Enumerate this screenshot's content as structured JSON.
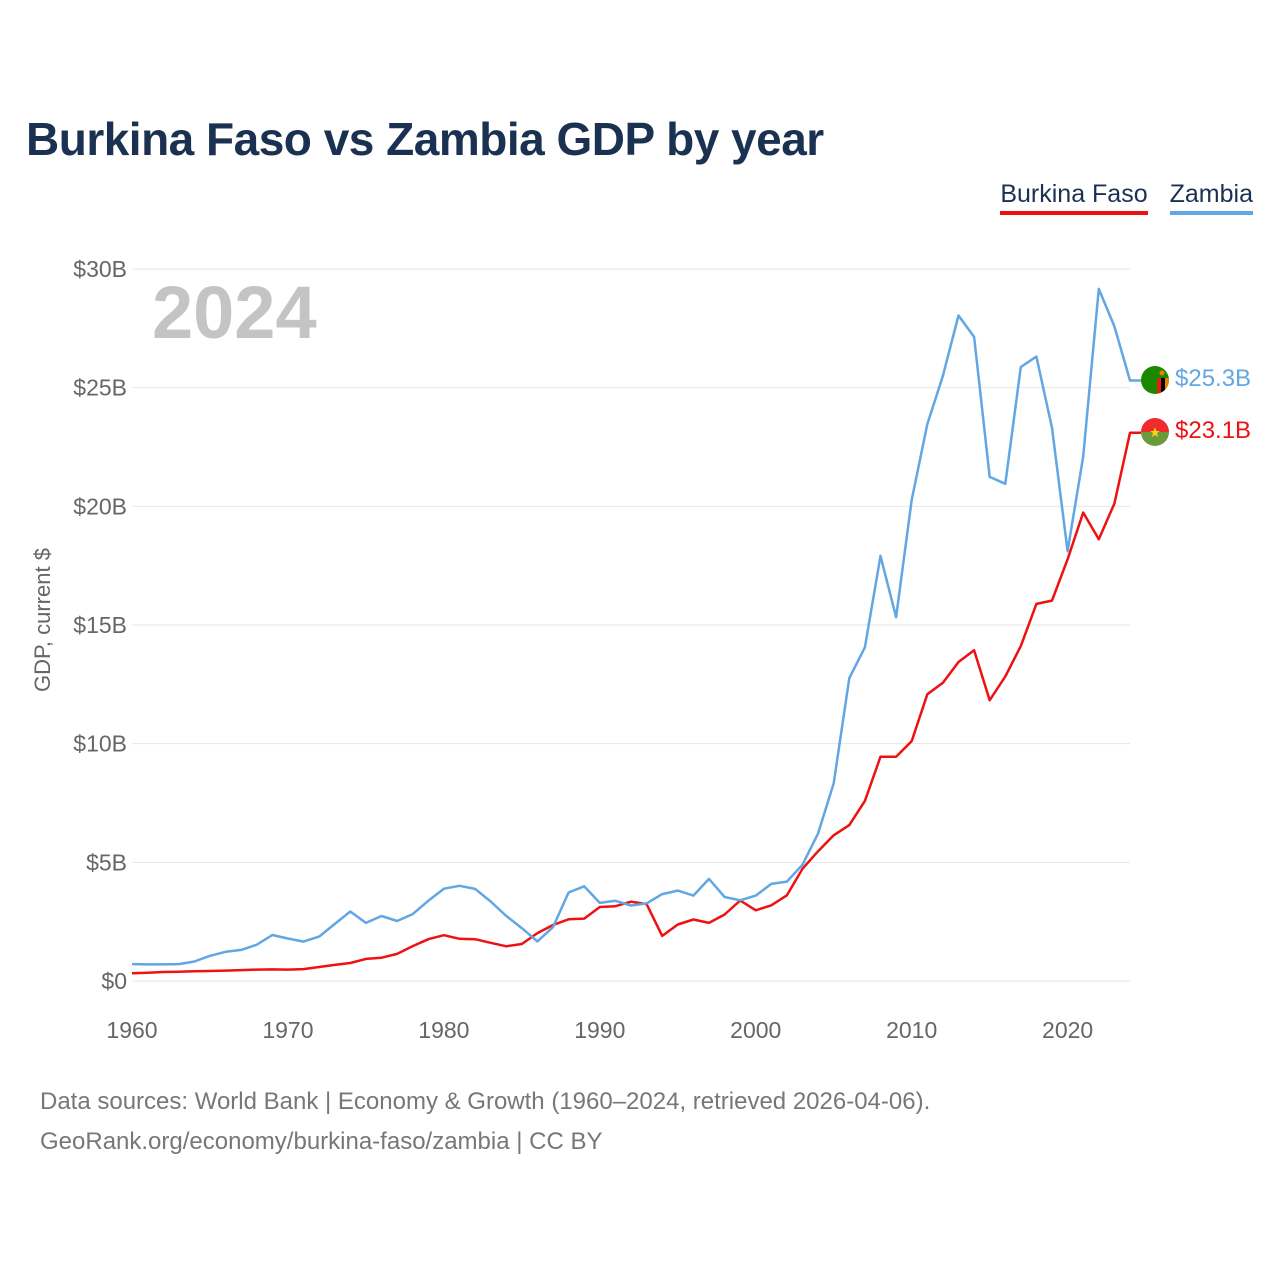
{
  "title": "Burkina Faso vs Zambia GDP by year",
  "year_watermark": "2024",
  "legend": {
    "burkina_faso": "Burkina Faso",
    "zambia": "Zambia"
  },
  "end_labels": {
    "zambia": "$25.3B",
    "burkina_faso": "$23.1B"
  },
  "source_line1": "Data sources: World Bank | Economy & Growth (1960–2024, retrieved 2026-04-06).",
  "source_line2": "GeoRank.org/economy/burkina-faso/zambia | CC BY",
  "colors": {
    "burkina_faso": "#ee1111",
    "zambia": "#62a6e3",
    "grid": "#e6e6e6",
    "axis_text": "#666666",
    "watermark": "#c4c4c4",
    "title": "#1b3152"
  },
  "chart_data": {
    "type": "line",
    "title": "Burkina Faso vs Zambia GDP by year",
    "xlabel": "",
    "ylabel": "GDP, current $",
    "xlim": [
      1960,
      2024
    ],
    "ylim": [
      0,
      30
    ],
    "y_unit": "billion USD",
    "x_ticks": [
      1960,
      1970,
      1980,
      1990,
      2000,
      2010,
      2020
    ],
    "y_ticks": [
      0,
      5,
      10,
      15,
      20,
      25,
      30
    ],
    "y_tick_labels": [
      "$0",
      "$5B",
      "$10B",
      "$15B",
      "$20B",
      "$25B",
      "$30B"
    ],
    "x": [
      1960,
      1961,
      1962,
      1963,
      1964,
      1965,
      1966,
      1967,
      1968,
      1969,
      1970,
      1971,
      1972,
      1973,
      1974,
      1975,
      1976,
      1977,
      1978,
      1979,
      1980,
      1981,
      1982,
      1983,
      1984,
      1985,
      1986,
      1987,
      1988,
      1989,
      1990,
      1991,
      1992,
      1993,
      1994,
      1995,
      1996,
      1997,
      1998,
      1999,
      2000,
      2001,
      2002,
      2003,
      2004,
      2005,
      2006,
      2007,
      2008,
      2009,
      2010,
      2011,
      2012,
      2013,
      2014,
      2015,
      2016,
      2017,
      2018,
      2019,
      2020,
      2021,
      2022,
      2023,
      2024
    ],
    "series": [
      {
        "name": "Burkina Faso",
        "color": "#ee1111",
        "values": [
          0.33,
          0.35,
          0.38,
          0.39,
          0.41,
          0.42,
          0.44,
          0.46,
          0.48,
          0.49,
          0.48,
          0.5,
          0.59,
          0.68,
          0.76,
          0.93,
          0.98,
          1.14,
          1.47,
          1.76,
          1.93,
          1.78,
          1.76,
          1.61,
          1.46,
          1.56,
          2.02,
          2.36,
          2.6,
          2.63,
          3.12,
          3.15,
          3.34,
          3.24,
          1.9,
          2.38,
          2.59,
          2.45,
          2.8,
          3.39,
          2.98,
          3.19,
          3.61,
          4.73,
          5.47,
          6.14,
          6.57,
          7.59,
          9.45,
          9.45,
          10.11,
          12.08,
          12.57,
          13.44,
          13.94,
          11.83,
          12.83,
          14.11,
          15.89,
          16.03,
          17.77,
          19.74,
          18.61,
          20.12,
          23.1
        ]
      },
      {
        "name": "Zambia",
        "color": "#62a6e3",
        "values": [
          0.71,
          0.7,
          0.7,
          0.71,
          0.82,
          1.06,
          1.23,
          1.31,
          1.53,
          1.94,
          1.79,
          1.66,
          1.87,
          2.4,
          2.93,
          2.45,
          2.74,
          2.53,
          2.82,
          3.38,
          3.89,
          4.01,
          3.88,
          3.35,
          2.74,
          2.23,
          1.67,
          2.27,
          3.73,
          3.99,
          3.29,
          3.38,
          3.18,
          3.27,
          3.66,
          3.81,
          3.6,
          4.3,
          3.54,
          3.4,
          3.6,
          4.09,
          4.19,
          4.9,
          6.22,
          8.33,
          12.76,
          14.06,
          17.91,
          15.33,
          20.27,
          23.46,
          25.5,
          28.04,
          27.14,
          21.24,
          20.95,
          25.87,
          26.31,
          23.31,
          18.11,
          22.1,
          29.16,
          27.58,
          25.3
        ]
      }
    ],
    "annotations": [
      "2024",
      "$25.3B",
      "$23.1B"
    ]
  }
}
